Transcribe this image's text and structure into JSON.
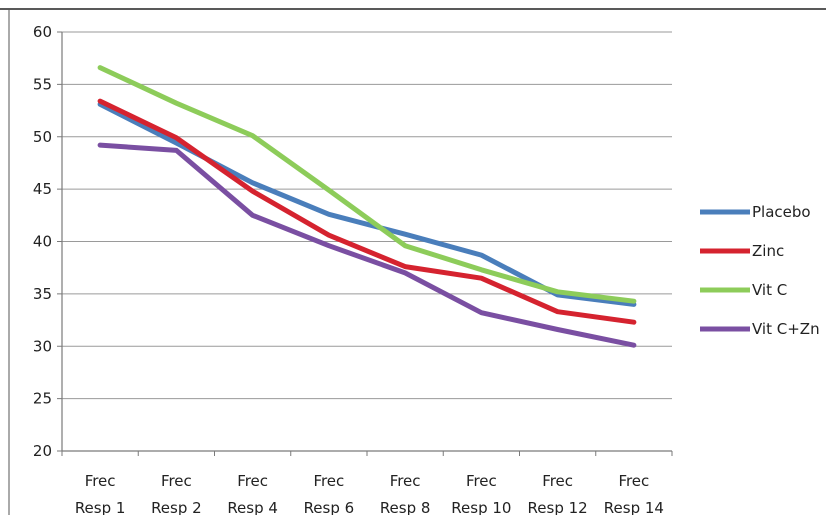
{
  "chart_data": {
    "type": "line",
    "title": "",
    "xlabel": "",
    "ylabel": "",
    "categories": [
      [
        "Frec",
        "Resp 1"
      ],
      [
        "Frec",
        "Resp 2"
      ],
      [
        "Frec",
        "Resp 4"
      ],
      [
        "Frec",
        "Resp 6"
      ],
      [
        "Frec",
        "Resp 8"
      ],
      [
        "Frec",
        "Resp 10"
      ],
      [
        "Frec",
        "Resp 12"
      ],
      [
        "Frec",
        "Resp 14"
      ]
    ],
    "ylim": [
      20,
      60
    ],
    "yticks": [
      "20",
      "25",
      "30",
      "35",
      "40",
      "45",
      "50",
      "55",
      "60"
    ],
    "grid": true,
    "legend_position": "right",
    "series": [
      {
        "name": "Placebo",
        "color": "#4a7ebb",
        "values": [
          53.1,
          49.4,
          45.6,
          42.6,
          40.7,
          38.7,
          34.9,
          34.0
        ]
      },
      {
        "name": "Zinc",
        "color": "#d5232f",
        "values": [
          53.4,
          49.9,
          44.8,
          40.6,
          37.6,
          36.5,
          33.3,
          32.3
        ]
      },
      {
        "name": "Vit C",
        "color": "#8dcc5a",
        "values": [
          56.6,
          53.2,
          50.1,
          44.9,
          39.6,
          37.3,
          35.2,
          34.3
        ]
      },
      {
        "name": "Vit C+Zn",
        "color": "#7a4fa2",
        "values": [
          49.2,
          48.7,
          42.5,
          39.6,
          37.0,
          33.2,
          31.6,
          30.1
        ]
      }
    ]
  }
}
